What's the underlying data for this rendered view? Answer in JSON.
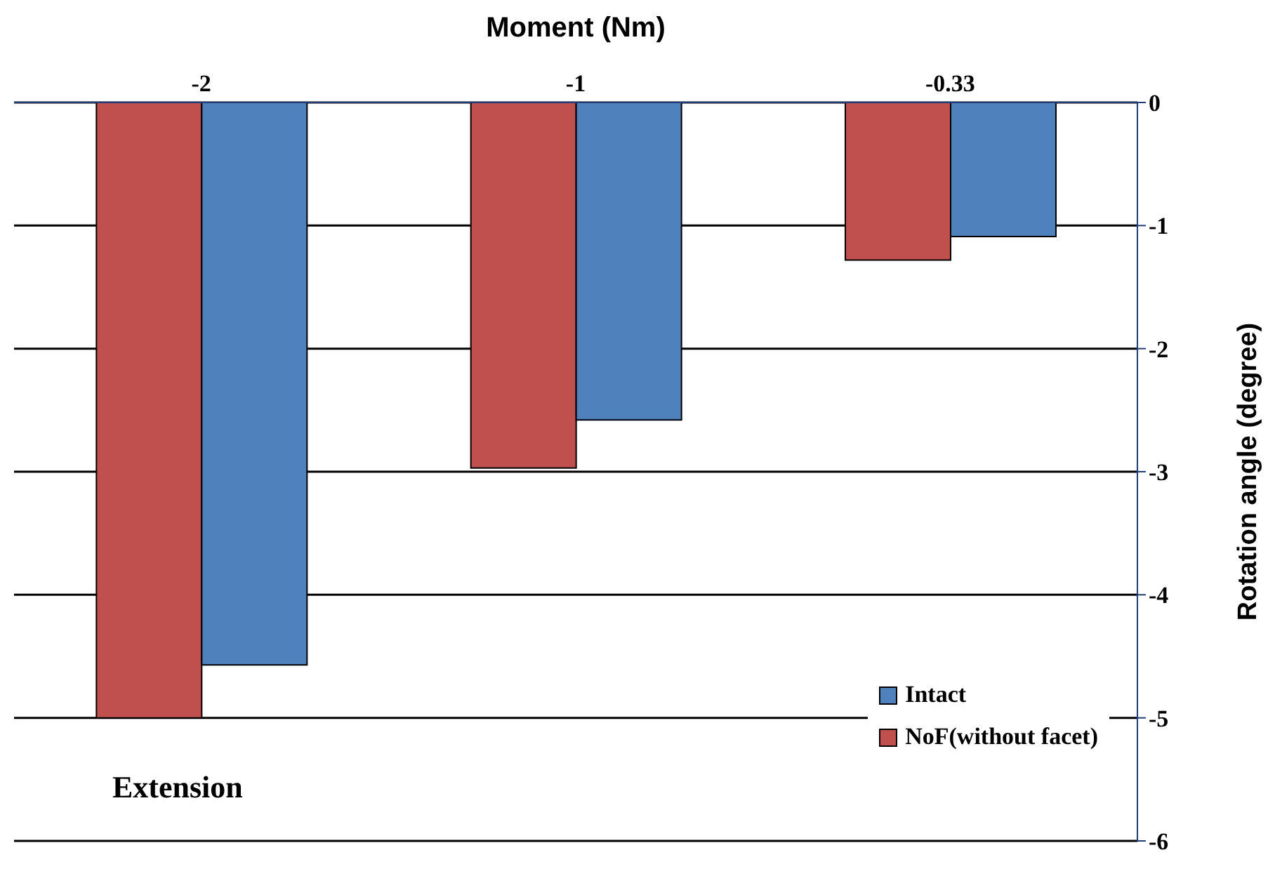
{
  "chart_data": {
    "type": "bar",
    "xlabel": "Moment (Nm)",
    "ylabel": "Rotation angle (degree)",
    "categories": [
      "-2",
      "-1",
      "-0.33"
    ],
    "series": [
      {
        "name": "NoF(without facet)",
        "color": "#c0504d",
        "values": [
          -5.0,
          -2.97,
          -1.28
        ]
      },
      {
        "name": "Intact",
        "color": "#4f81bd",
        "values": [
          -4.57,
          -2.58,
          -1.09
        ]
      }
    ],
    "ylim": [
      -6,
      0
    ],
    "yticks": [
      0,
      -1,
      -2,
      -3,
      -4,
      -5,
      -6
    ],
    "grid": "y",
    "legend": "bottom right",
    "annotations": [
      "Extension"
    ]
  }
}
